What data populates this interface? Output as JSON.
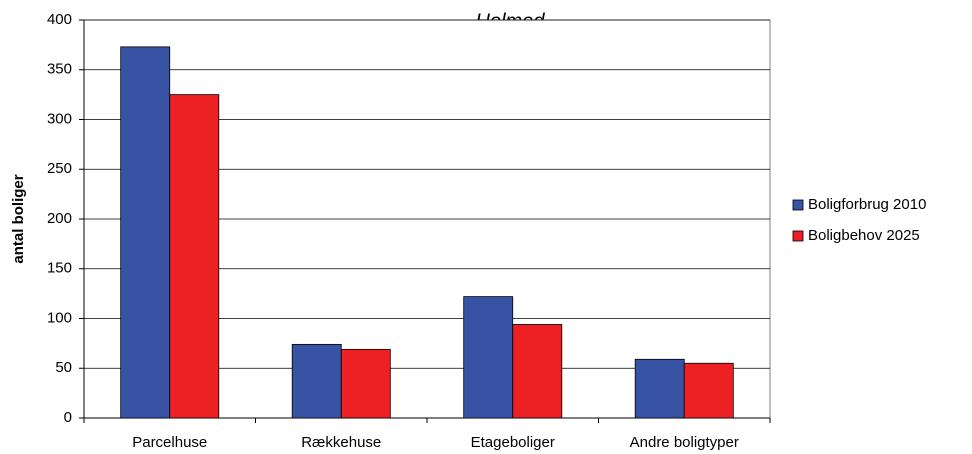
{
  "chart_data": {
    "type": "bar",
    "title": "Holmed",
    "y_label": "antal boliger",
    "categories": [
      "Parcelhuse",
      "Rækkehuse",
      "Etageboliger",
      "Andre boligtyper"
    ],
    "series": [
      {
        "name": "Boligforbrug 2010",
        "color": "#3953a4",
        "values": [
          373,
          74,
          122,
          59
        ]
      },
      {
        "name": "Boligbehov 2025",
        "color": "#ed2024",
        "values": [
          325,
          69,
          94,
          55
        ]
      }
    ],
    "ylim": [
      0,
      400
    ],
    "yticks": [
      0,
      50,
      100,
      150,
      200,
      250,
      300,
      350,
      400
    ],
    "grid": true,
    "legend": "right"
  }
}
